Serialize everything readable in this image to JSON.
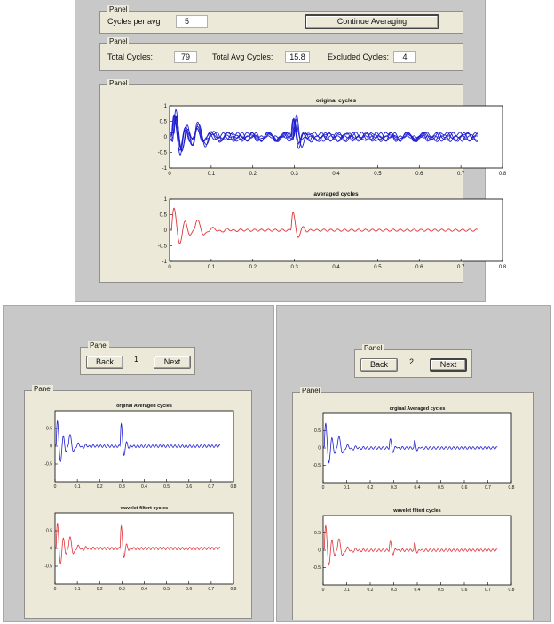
{
  "top_window": {
    "controls_panel": {
      "title": "Panel",
      "cycles_per_avg_label": "Cycles per avg",
      "cycles_per_avg_value": "5",
      "continue_button": "Continue Averaging"
    },
    "stats_panel": {
      "title": "Panel",
      "total_cycles_label": "Total Cycles:",
      "total_cycles_value": "79",
      "total_avg_label": "Total Avg Cycles:",
      "total_avg_value": "15.8",
      "excluded_label": "Excluded Cycles:",
      "excluded_value": "4"
    },
    "plots_panel": {
      "title": "Panel",
      "plot1_title": "original cycles",
      "plot2_title": "averaged cycles"
    }
  },
  "bottom_left_window": {
    "nav_panel": {
      "title": "Panel",
      "back": "Back",
      "index": "1",
      "next": "Next"
    },
    "plots_panel": {
      "title": "Panel",
      "plot1_title": "orginal Averaged cycles",
      "plot2_title": "wavelet filtert cycles"
    }
  },
  "bottom_right_window": {
    "nav_panel": {
      "title": "Panel",
      "back": "Back",
      "index": "2",
      "next": "Next"
    },
    "plots_panel": {
      "title": "Panel",
      "plot1_title": "orginal Averaged cycles",
      "plot2_title": "wavelet filtert cycles"
    }
  },
  "colors": {
    "blue_trace": "#1f1fd0",
    "red_trace": "#e0343c",
    "panel_bg": "#ece9d8",
    "window_bg": "#c8c8c8"
  },
  "axes": {
    "top_x_ticks": [
      "0",
      "0.1",
      "0.2",
      "0.3",
      "0.4",
      "0.5",
      "0.6",
      "0.7",
      "0.8"
    ],
    "top_y_ticks": [
      "1",
      "0.5",
      "0",
      "-0.5",
      "-1"
    ],
    "bottom_x_ticks": [
      "0",
      "0.1",
      "0.2",
      "0.3",
      "0.4",
      "0.5",
      "0.6",
      "0.7",
      "0.8"
    ],
    "bottom_y_ticks": [
      "0.5",
      "0",
      "-0.5"
    ]
  },
  "chart_data": [
    {
      "type": "line",
      "title": "original cycles",
      "xlim": [
        0,
        0.8
      ],
      "ylim": [
        -1,
        1
      ],
      "color": "blue",
      "series_count": 5
    },
    {
      "type": "line",
      "title": "averaged cycles",
      "xlim": [
        0,
        0.8
      ],
      "ylim": [
        -1,
        1
      ],
      "color": "red"
    },
    {
      "type": "line",
      "title": "orginal Averaged cycles",
      "xlim": [
        0,
        0.8
      ],
      "ylim": [
        -1,
        1
      ],
      "color": "blue",
      "variant": 1
    },
    {
      "type": "line",
      "title": "wavelet filtert cycles",
      "xlim": [
        0,
        0.8
      ],
      "ylim": [
        -1,
        1
      ],
      "color": "red",
      "variant": 1
    },
    {
      "type": "line",
      "title": "orginal Averaged cycles",
      "xlim": [
        0,
        0.8
      ],
      "ylim": [
        -1,
        1
      ],
      "color": "blue",
      "variant": 2
    },
    {
      "type": "line",
      "title": "wavelet filtert cycles",
      "xlim": [
        0,
        0.8
      ],
      "ylim": [
        -1,
        1
      ],
      "color": "red",
      "variant": 2
    }
  ]
}
